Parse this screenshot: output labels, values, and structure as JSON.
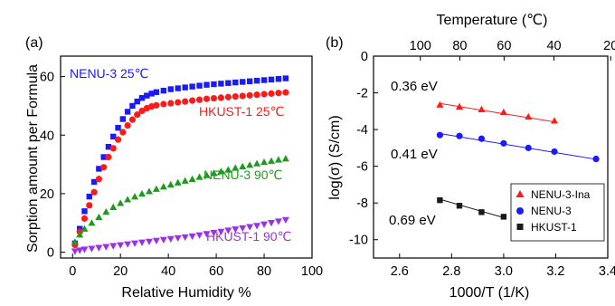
{
  "chart_data": [
    {
      "panel": "(a)",
      "type": "scatter",
      "xlabel": "Relative Humidity %",
      "ylabel": "Sorption amount per  Formula",
      "xlim": [
        -5,
        100
      ],
      "ylim": [
        -2,
        67
      ],
      "xticks": [
        0,
        20,
        40,
        60,
        80,
        100
      ],
      "yticks": [
        0,
        20,
        40,
        60
      ],
      "grid": false,
      "series": [
        {
          "name": "NENU-3  25℃",
          "color": "#1a1aff",
          "marker": "square",
          "x": [
            1,
            3,
            5,
            7,
            9,
            11,
            13,
            15,
            17,
            19,
            21,
            23,
            25,
            27,
            29,
            31,
            33,
            35,
            38,
            41,
            44,
            47,
            50,
            53,
            56,
            59,
            62,
            65,
            68,
            71,
            74,
            77,
            80,
            83,
            86,
            89
          ],
          "y": [
            3,
            8,
            14,
            19,
            24,
            28.5,
            32.5,
            36,
            39.5,
            42.5,
            45.5,
            48,
            50,
            51.5,
            52.7,
            53.5,
            54.2,
            54.7,
            55.2,
            55.7,
            56,
            56.3,
            56.6,
            56.9,
            57.2,
            57.4,
            57.6,
            57.8,
            58,
            58.2,
            58.4,
            58.6,
            58.8,
            59,
            59.2,
            59.4
          ]
        },
        {
          "name": "HKUST-1  25℃",
          "color": "#ff1a1a",
          "marker": "circle",
          "x": [
            1,
            3,
            5,
            7,
            9,
            11,
            13,
            15,
            17,
            19,
            21,
            23,
            25,
            27,
            29,
            31,
            33,
            35,
            38,
            41,
            44,
            47,
            50,
            53,
            56,
            59,
            62,
            65,
            68,
            71,
            74,
            77,
            80,
            83,
            86,
            89
          ],
          "y": [
            2.5,
            7,
            11.5,
            16,
            20.5,
            25,
            29,
            32.5,
            35.5,
            38.5,
            41,
            43.3,
            45.3,
            47,
            48.3,
            49.2,
            49.8,
            50.2,
            50.6,
            50.9,
            51.2,
            51.5,
            51.8,
            52.1,
            52.4,
            52.6,
            52.8,
            53,
            53.2,
            53.4,
            53.6,
            53.8,
            54,
            54.2,
            54.4,
            54.6
          ]
        },
        {
          "name": "NENU-3  90℃",
          "color": "#1f9a1f",
          "marker": "triangle-up",
          "x": [
            1,
            3,
            5,
            8,
            11,
            14,
            17,
            20,
            23,
            26,
            29,
            32,
            35,
            38,
            41,
            44,
            47,
            50,
            53,
            56,
            59,
            62,
            65,
            68,
            71,
            74,
            77,
            80,
            83,
            86,
            89
          ],
          "y": [
            3.5,
            6,
            8,
            10,
            12,
            13.8,
            15.4,
            16.8,
            18,
            19,
            20,
            20.8,
            21.6,
            22.4,
            23.1,
            23.8,
            24.4,
            25,
            25.7,
            26.3,
            27,
            27.6,
            28.2,
            28.8,
            29.3,
            29.8,
            30.3,
            30.8,
            31.2,
            31.6,
            32
          ]
        },
        {
          "name": "HKUST-1  90℃",
          "color": "#9a30ea",
          "marker": "triangle-down",
          "x": [
            1,
            3,
            5,
            8,
            11,
            14,
            17,
            20,
            23,
            26,
            29,
            32,
            35,
            38,
            41,
            44,
            47,
            50,
            53,
            56,
            59,
            62,
            65,
            68,
            71,
            74,
            77,
            80,
            83,
            86,
            89
          ],
          "y": [
            0.3,
            0.6,
            0.9,
            1.2,
            1.5,
            1.8,
            2.1,
            2.4,
            2.7,
            3,
            3.3,
            3.6,
            3.9,
            4.2,
            4.5,
            4.8,
            5.1,
            5.4,
            5.8,
            6.2,
            6.6,
            7,
            7.4,
            7.8,
            8.2,
            8.6,
            9,
            9.5,
            10,
            10.5,
            11
          ]
        }
      ]
    },
    {
      "panel": "(b)",
      "type": "scatter",
      "xlabel": "1000/T (1/K)",
      "ylabel": "log(σ) (S/cm)",
      "top_xlabel": "Temperature (℃)",
      "xlim": [
        2.5,
        3.4
      ],
      "ylim": [
        -11,
        0
      ],
      "xticks": [
        2.6,
        2.8,
        3.0,
        3.2,
        3.4
      ],
      "yticks": [
        0,
        -2,
        -4,
        -6,
        -8,
        -10
      ],
      "top_ticks": [
        80,
        60,
        40,
        20,
        100
      ],
      "grid": false,
      "legend": "bottom-right",
      "series": [
        {
          "name": "NENU-3-Ina",
          "color": "#ff1a1a",
          "marker": "triangle-up",
          "activation_energy": "0.36 eV",
          "x": [
            2.755,
            2.83,
            2.915,
            3.0,
            3.095,
            3.195
          ],
          "y": [
            -2.65,
            -2.75,
            -2.9,
            -3.05,
            -3.3,
            -3.52
          ],
          "fit": [
            [
              2.755,
              -2.58
            ],
            [
              3.195,
              -3.58
            ]
          ]
        },
        {
          "name": "NENU-3",
          "color": "#1a1aff",
          "marker": "circle",
          "activation_energy": "0.41 eV",
          "x": [
            2.755,
            2.83,
            2.915,
            3.0,
            3.095,
            3.195,
            3.355
          ],
          "y": [
            -4.3,
            -4.35,
            -4.5,
            -4.75,
            -5.0,
            -5.2,
            -5.6
          ],
          "fit": [
            [
              2.755,
              -4.22
            ],
            [
              3.355,
              -5.62
            ]
          ]
        },
        {
          "name": "HKUST-1",
          "color": "#1a1a1a",
          "marker": "square",
          "activation_energy": "0.69 eV",
          "x": [
            2.755,
            2.83,
            2.915,
            3.0
          ],
          "y": [
            -7.85,
            -8.15,
            -8.5,
            -8.75
          ],
          "fit": [
            [
              2.755,
              -7.8
            ],
            [
              3.0,
              -8.8
            ]
          ]
        }
      ]
    }
  ]
}
